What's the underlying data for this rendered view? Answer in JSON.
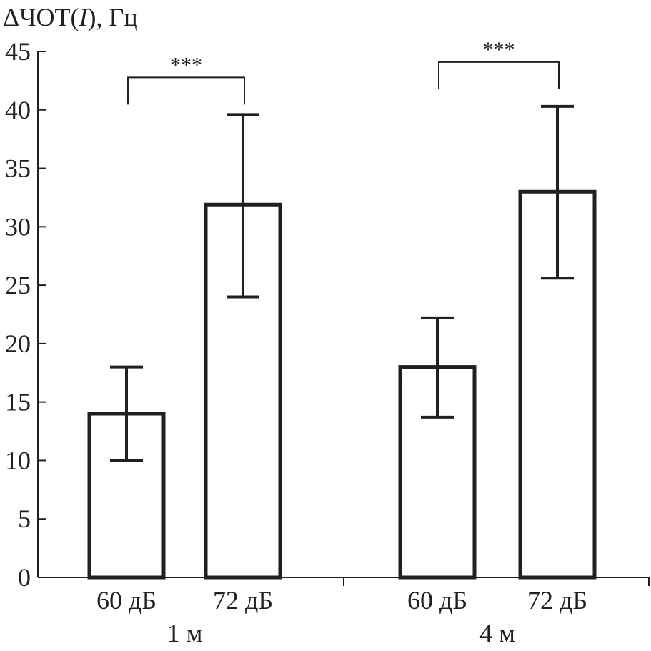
{
  "chart_data": {
    "type": "bar",
    "ylabel": "ΔЧОТ(I), Гц",
    "ylabel_parts": {
      "prefix": "ΔЧОТ(",
      "italic": "I",
      "suffix": "), Гц"
    },
    "ylim": [
      0,
      45
    ],
    "yticks": [
      0,
      5,
      10,
      15,
      20,
      25,
      30,
      35,
      40,
      45
    ],
    "groups": [
      {
        "label": "1 м",
        "bars": [
          {
            "label": "60 дБ",
            "value": 14.0,
            "err_low": 10.0,
            "err_high": 18.0
          },
          {
            "label": "72 дБ",
            "value": 31.9,
            "err_low": 24.0,
            "err_high": 39.6
          }
        ],
        "significance": "***"
      },
      {
        "label": "4 м",
        "bars": [
          {
            "label": "60 дБ",
            "value": 18.0,
            "err_low": 13.7,
            "err_high": 22.2
          },
          {
            "label": "72 дБ",
            "value": 33.0,
            "err_low": 25.6,
            "err_high": 40.3
          }
        ],
        "significance": "***"
      }
    ],
    "bar_fill": "#ffffff",
    "stroke_color": "#231f20",
    "grid": false,
    "legend": "none"
  }
}
